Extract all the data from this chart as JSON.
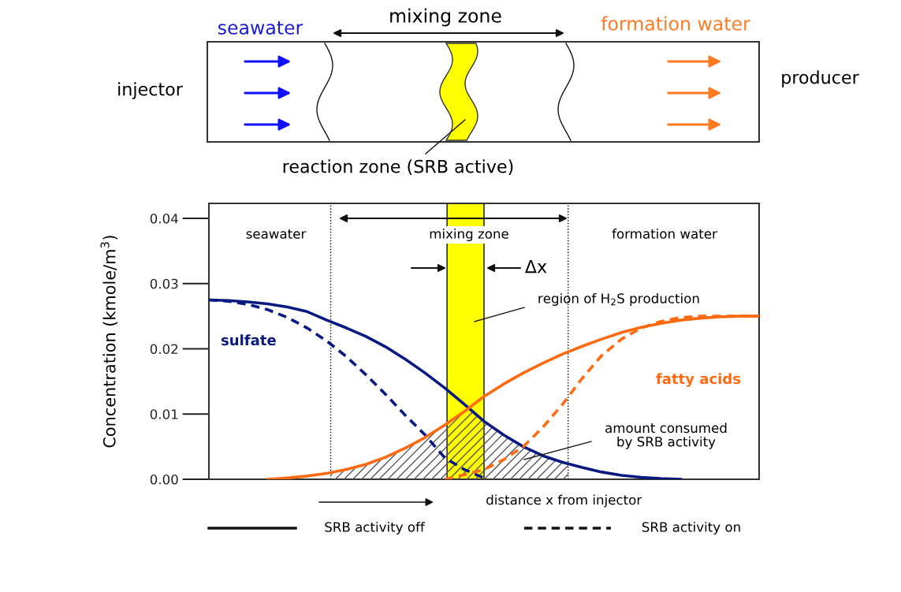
{
  "chart_data": {
    "type": "line",
    "xlabel": "distance x from injector",
    "ylabel": "Concentration (kmole/m$^{3}$)",
    "categories": [
      null,
      null,
      null,
      null,
      null,
      null,
      null,
      null,
      null,
      null,
      null,
      null,
      null,
      null,
      null,
      null,
      null,
      null,
      null,
      null,
      null,
      null,
      null,
      null,
      null,
      null,
      null,
      null,
      null
    ],
    "series": [
      {
        "name": "sulfate",
        "color": "#0a1a80",
        "line_style": "solid",
        "values": [
          0.0275,
          0.0274,
          0.0272,
          0.0269,
          0.0264,
          0.0257,
          0.0244,
          0.0232,
          0.0219,
          0.0203,
          0.0184,
          0.0163,
          0.014,
          0.0115,
          0.0089,
          0.0068,
          0.005,
          0.0036,
          0.0026,
          0.0018,
          0.0011,
          0.0006,
          0.0003,
          0.0001,
          0.0,
          null,
          null,
          null,
          null
        ]
      },
      {
        "color": "#0a1a80",
        "line_style": "dashed",
        "values": [
          0.0275,
          0.0273,
          0.0268,
          0.026,
          0.0248,
          0.0232,
          0.0212,
          0.0188,
          0.016,
          0.013,
          0.0098,
          0.0068,
          0.0033,
          0.0015,
          0.0002,
          null,
          null,
          null,
          null,
          null,
          null,
          null,
          null,
          null,
          null,
          null,
          null,
          null,
          null
        ]
      },
      {
        "name": "fatty acids",
        "color": "#ff6a10",
        "line_style": "solid",
        "values": [
          null,
          null,
          null,
          0.0,
          0.0002,
          0.0005,
          0.0009,
          0.0015,
          0.0023,
          0.0034,
          0.0048,
          0.0064,
          0.0083,
          0.0104,
          0.0127,
          0.0146,
          0.0163,
          0.0178,
          0.0192,
          0.0204,
          0.0215,
          0.0225,
          0.0233,
          0.0239,
          0.0244,
          0.0247,
          0.0249,
          0.025,
          0.025
        ]
      },
      {
        "color": "#ff6a10",
        "line_style": "dashed",
        "values": [
          null,
          null,
          null,
          null,
          null,
          null,
          null,
          null,
          null,
          null,
          null,
          null,
          0.0,
          0.0007,
          0.0015,
          0.003,
          0.005,
          0.008,
          0.0115,
          0.0155,
          0.019,
          0.0215,
          0.0232,
          0.0242,
          0.0248,
          0.025,
          0.025,
          0.025,
          0.025
        ]
      }
    ],
    "ylim": [
      0,
      0.0423
    ],
    "yticks": [
      {
        "value": 0,
        "label": "0.00"
      },
      {
        "value": 0.01,
        "label": "0.01"
      },
      {
        "value": 0.02,
        "label": "0.02"
      },
      {
        "value": 0.03,
        "label": "0.03"
      },
      {
        "value": 0.04,
        "label": "0.04"
      }
    ],
    "tick_labels": "y",
    "grid": false,
    "marker": "none",
    "annotations": [
      "seawater",
      "mixing zone",
      "formation water",
      "injector",
      "producer",
      "reaction zone (SRB active)",
      "seawater",
      "mixing zone",
      "formation water",
      "Δx",
      "region of H$_{2}$S production",
      "amount consumed\nby SRB activity",
      "SRB activity off",
      "SRB activity on"
    ]
  }
}
